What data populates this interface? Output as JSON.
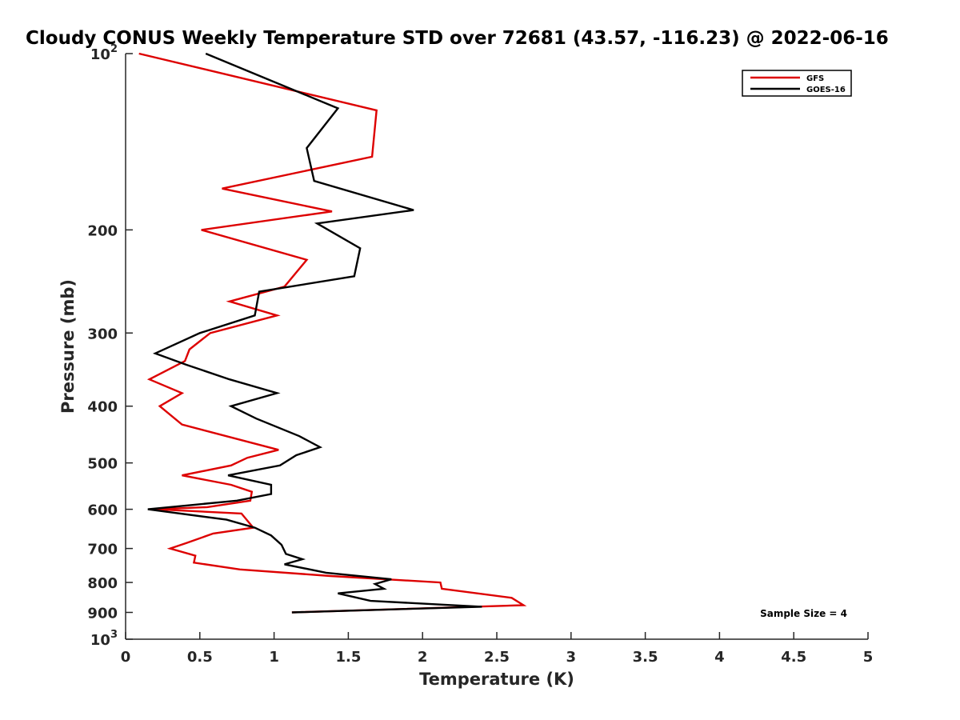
{
  "chart_data": {
    "type": "line",
    "title": "Cloudy CONUS Weekly Temperature STD over 72681 (43.57, -116.23) @ 2022-06-16",
    "xlabel": "Temperature (K)",
    "ylabel": "Pressure (mb)",
    "xlim": [
      0,
      5
    ],
    "ylim": [
      100,
      1000
    ],
    "y_scale": "log",
    "y_reversed": true,
    "grid": false,
    "x_ticks": [
      0,
      0.5,
      1,
      1.5,
      2,
      2.5,
      3,
      3.5,
      4,
      4.5,
      5
    ],
    "x_tick_labels": [
      "0",
      "0.5",
      "1",
      "1.5",
      "2",
      "2.5",
      "3",
      "3.5",
      "4",
      "4.5",
      "5"
    ],
    "y_ticks": [
      100,
      200,
      300,
      400,
      500,
      600,
      700,
      800,
      900,
      1000
    ],
    "y_tick_labels": [
      {
        "base": "10",
        "exp": "2"
      },
      {
        "base": "200",
        "exp": ""
      },
      {
        "base": "300",
        "exp": ""
      },
      {
        "base": "400",
        "exp": ""
      },
      {
        "base": "500",
        "exp": ""
      },
      {
        "base": "600",
        "exp": ""
      },
      {
        "base": "700",
        "exp": ""
      },
      {
        "base": "800",
        "exp": ""
      },
      {
        "base": "900",
        "exp": ""
      },
      {
        "base": "10",
        "exp": "3"
      }
    ],
    "legend_position": "top-right",
    "annotation": "Sample Size = 4",
    "series": [
      {
        "name": "GFS",
        "color": "#dd0000",
        "points": [
          [
            0.09,
            100
          ],
          [
            1.69,
            125
          ],
          [
            1.66,
            150
          ],
          [
            0.65,
            170
          ],
          [
            1.39,
            186
          ],
          [
            0.51,
            200
          ],
          [
            1.22,
            225
          ],
          [
            1.07,
            250
          ],
          [
            0.7,
            265
          ],
          [
            1.02,
            280
          ],
          [
            0.57,
            300
          ],
          [
            0.43,
            320
          ],
          [
            0.4,
            335
          ],
          [
            0.16,
            360
          ],
          [
            0.38,
            380
          ],
          [
            0.23,
            400
          ],
          [
            0.38,
            430
          ],
          [
            0.75,
            455
          ],
          [
            1.03,
            475
          ],
          [
            0.82,
            490
          ],
          [
            0.71,
            505
          ],
          [
            0.38,
            525
          ],
          [
            0.71,
            545
          ],
          [
            0.85,
            560
          ],
          [
            0.84,
            580
          ],
          [
            0.55,
            595
          ],
          [
            0.2,
            600
          ],
          [
            0.78,
            610
          ],
          [
            0.86,
            645
          ],
          [
            0.59,
            660
          ],
          [
            0.41,
            685
          ],
          [
            0.3,
            700
          ],
          [
            0.47,
            720
          ],
          [
            0.46,
            740
          ],
          [
            0.77,
            760
          ],
          [
            1.38,
            780
          ],
          [
            2.12,
            800
          ],
          [
            2.13,
            820
          ],
          [
            2.6,
            850
          ],
          [
            2.68,
            875
          ],
          [
            1.12,
            900
          ]
        ]
      },
      {
        "name": "GOES-16",
        "color": "#000000",
        "points": [
          [
            0.54,
            100
          ],
          [
            1.43,
            124
          ],
          [
            1.22,
            145
          ],
          [
            1.27,
            165
          ],
          [
            1.94,
            185
          ],
          [
            1.29,
            195
          ],
          [
            1.58,
            215
          ],
          [
            1.54,
            240
          ],
          [
            0.9,
            255
          ],
          [
            0.87,
            280
          ],
          [
            0.5,
            300
          ],
          [
            0.2,
            325
          ],
          [
            0.41,
            340
          ],
          [
            0.7,
            360
          ],
          [
            1.02,
            380
          ],
          [
            0.71,
            400
          ],
          [
            0.88,
            420
          ],
          [
            1.17,
            450
          ],
          [
            1.31,
            470
          ],
          [
            1.15,
            485
          ],
          [
            1.04,
            505
          ],
          [
            0.69,
            525
          ],
          [
            0.98,
            545
          ],
          [
            0.98,
            565
          ],
          [
            0.75,
            580
          ],
          [
            0.15,
            600
          ],
          [
            0.68,
            625
          ],
          [
            0.87,
            645
          ],
          [
            0.98,
            665
          ],
          [
            1.05,
            690
          ],
          [
            1.08,
            715
          ],
          [
            1.19,
            730
          ],
          [
            1.07,
            745
          ],
          [
            1.35,
            770
          ],
          [
            1.79,
            790
          ],
          [
            1.68,
            805
          ],
          [
            1.74,
            820
          ],
          [
            1.43,
            835
          ],
          [
            1.65,
            860
          ],
          [
            2.4,
            880
          ],
          [
            1.12,
            900
          ]
        ]
      }
    ]
  }
}
